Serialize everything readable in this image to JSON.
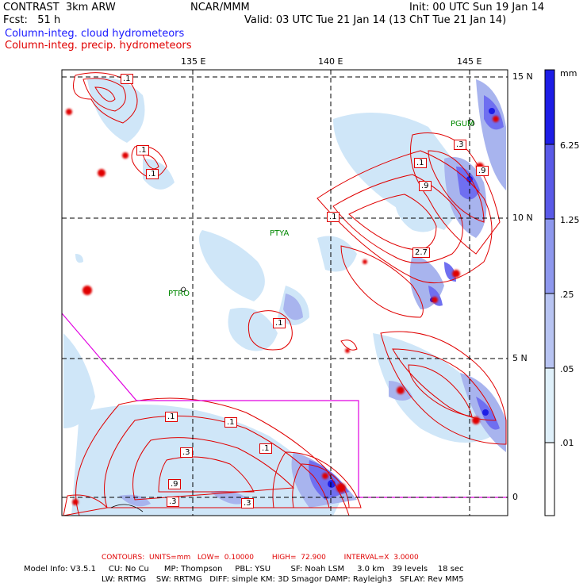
{
  "header": {
    "model": "CONTRAST  3km ARW",
    "center": "NCAR/MMM",
    "init": "Init: 00 UTC Sun 19 Jan 14",
    "fcst": "Fcst:   51 h",
    "valid": "Valid: 03 UTC Tue 21 Jan 14 (13 ChT Tue 21 Jan 14)",
    "field_blue": "Column-integ. cloud hydrometeors",
    "field_red": "Column-integ. precip. hydrometeors"
  },
  "colors": {
    "cloud_light": "#cfe6f8",
    "cloud_mid": "#a8b4ee",
    "cloud_dark": "#6f6ff0",
    "cloud_max": "#1d1de6",
    "contour": "#e00000",
    "boundary": "#e000e0",
    "station": "#008800"
  },
  "map": {
    "lon_labels": [
      "135 E",
      "140 E",
      "145 E"
    ],
    "lat_labels": [
      "15 N",
      "10 N",
      "5 N",
      "0"
    ],
    "stations": [
      "PGUM",
      "PTYA",
      "PTRO"
    ],
    "contour_labels": [
      ".1",
      ".1",
      ".1",
      ".1",
      ".9",
      ".3",
      ".9",
      "2.7",
      ".1",
      ".1",
      ".1",
      ".1",
      ".3",
      ".1",
      ".9",
      ".3",
      ".3"
    ]
  },
  "colorbar": {
    "unit": "mm",
    "levels": [
      "6.25",
      "1.25",
      ".25",
      ".05",
      ".01"
    ]
  },
  "footer": {
    "contours": "CONTOURS:  UNITS=mm   LOW=  0.10000        HIGH=  72.900        INTERVAL=X  3.0000",
    "model_info": "Model Info: V3.5.1     CU: No Cu      MP: Thompson     PBL: YSU        SF: Noah LSM     3.0 km   39 levels    18 sec",
    "physics": "LW: RRTMG    SW: RRTMG   DIFF: simple KM: 3D Smagor DAMP: Rayleigh3   SFLAY: Rev MM5"
  }
}
